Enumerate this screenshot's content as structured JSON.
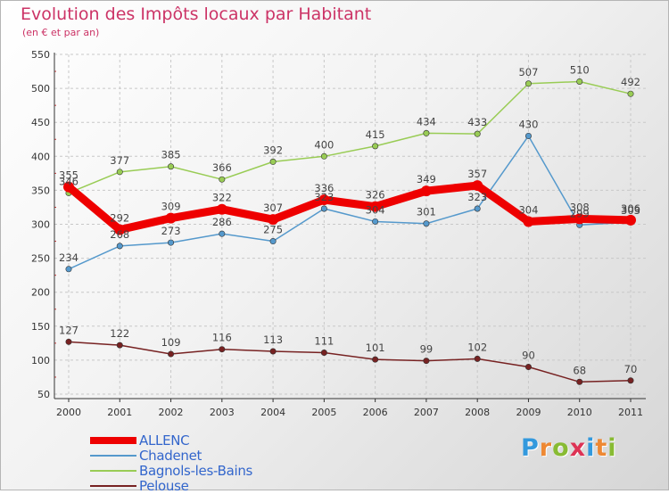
{
  "page": {
    "title": "Evolution des Impôts locaux par Habitant",
    "subtitle": "(en € et par an)",
    "logo": {
      "text": "Proxiti",
      "colors": [
        "#3399dd",
        "#ee8833",
        "#88bb33",
        "#dd3355",
        "#3399dd",
        "#ee8833",
        "#88bb33"
      ]
    }
  },
  "chart_data": {
    "type": "line",
    "x": [
      "2000",
      "2001",
      "2002",
      "2003",
      "2004",
      "2005",
      "2006",
      "2007",
      "2008",
      "2009",
      "2010",
      "2011"
    ],
    "yticks": [
      50,
      100,
      150,
      200,
      250,
      300,
      350,
      400,
      450,
      500,
      550
    ],
    "ylim": [
      50,
      550
    ],
    "grid": true,
    "legend_position": "bottom-left",
    "series": [
      {
        "name": "ALLENC",
        "color": "#ee0000",
        "bold": true,
        "values": [
          355,
          292,
          309,
          322,
          307,
          336,
          326,
          349,
          357,
          304,
          308,
          306
        ]
      },
      {
        "name": "Chadenet",
        "color": "#5599cc",
        "bold": false,
        "values": [
          234,
          268,
          273,
          286,
          275,
          323,
          304,
          301,
          323,
          430,
          299,
          303
        ]
      },
      {
        "name": "Bagnols-les-Bains",
        "color": "#99cc55",
        "bold": false,
        "values": [
          346,
          377,
          385,
          366,
          392,
          400,
          415,
          434,
          433,
          507,
          510,
          492
        ]
      },
      {
        "name": "Pelouse",
        "color": "#772222",
        "bold": false,
        "values": [
          127,
          122,
          109,
          116,
          113,
          111,
          101,
          99,
          102,
          90,
          68,
          70
        ]
      }
    ]
  }
}
